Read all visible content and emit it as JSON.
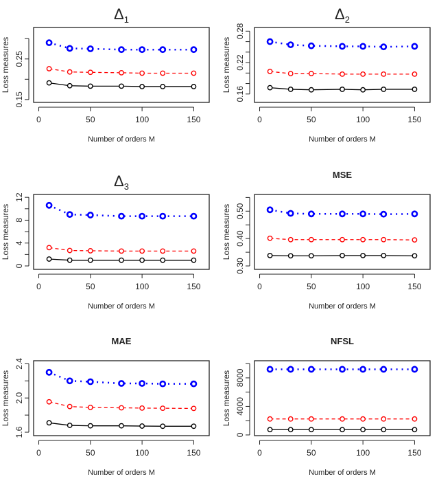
{
  "chart_data": [
    {
      "type": "line",
      "title": "Δ1",
      "title_main": "Δ",
      "title_sub": "1",
      "xlabel": "Number of orders M",
      "ylabel": "Loss measures",
      "xlim": [
        -5,
        165
      ],
      "ylim": [
        0.143,
        0.3275
      ],
      "xticks": [
        0,
        50,
        100,
        150
      ],
      "yticks": [
        0.15,
        0.2,
        0.25,
        0.3
      ],
      "ytick_labels": [
        "0.15",
        "",
        "0.25",
        ""
      ],
      "x": [
        10,
        30,
        50,
        80,
        100,
        120,
        150
      ],
      "series": [
        {
          "name": "blue-dotted",
          "color": "#0000ff",
          "values": [
            0.29,
            0.276,
            0.275,
            0.273,
            0.273,
            0.273,
            0.273
          ]
        },
        {
          "name": "red-dashed",
          "color": "#ff0000",
          "values": [
            0.226,
            0.218,
            0.217,
            0.216,
            0.215,
            0.215,
            0.215
          ]
        },
        {
          "name": "black-solid",
          "color": "#000000",
          "values": [
            0.191,
            0.184,
            0.183,
            0.183,
            0.182,
            0.182,
            0.182
          ]
        }
      ]
    },
    {
      "type": "line",
      "title": "Δ2",
      "title_main": "Δ",
      "title_sub": "2",
      "xlabel": "Number of orders M",
      "ylabel": "Loss measures",
      "xlim": [
        -5,
        165
      ],
      "ylim": [
        0.144,
        0.287
      ],
      "xticks": [
        0,
        50,
        100,
        150
      ],
      "yticks": [
        0.16,
        0.18,
        0.2,
        0.22,
        0.24,
        0.26,
        0.28
      ],
      "ytick_labels": [
        "0.16",
        "",
        "",
        "0.22",
        "",
        "",
        "0.28"
      ],
      "x": [
        10,
        30,
        50,
        80,
        100,
        120,
        150
      ],
      "series": [
        {
          "name": "blue-dotted",
          "color": "#0000ff",
          "values": [
            0.26,
            0.254,
            0.252,
            0.251,
            0.251,
            0.25,
            0.251
          ]
        },
        {
          "name": "red-dashed",
          "color": "#ff0000",
          "values": [
            0.203,
            0.199,
            0.199,
            0.198,
            0.198,
            0.198,
            0.198
          ]
        },
        {
          "name": "black-solid",
          "color": "#000000",
          "values": [
            0.172,
            0.169,
            0.168,
            0.169,
            0.168,
            0.169,
            0.169
          ]
        }
      ]
    },
    {
      "type": "line",
      "title": "Δ3",
      "title_main": "Δ",
      "title_sub": "3",
      "xlabel": "Number of orders M",
      "ylabel": "Loss measures",
      "xlim": [
        -5,
        165
      ],
      "ylim": [
        -0.6,
        12.5
      ],
      "xticks": [
        0,
        50,
        100,
        150
      ],
      "yticks": [
        0,
        2,
        4,
        6,
        8,
        10,
        12
      ],
      "ytick_labels": [
        "0",
        "",
        "4",
        "",
        "8",
        "",
        "12"
      ],
      "x": [
        10,
        30,
        50,
        80,
        100,
        120,
        150
      ],
      "series": [
        {
          "name": "blue-dotted",
          "color": "#0000ff",
          "values": [
            10.6,
            9.0,
            8.9,
            8.7,
            8.7,
            8.7,
            8.7
          ]
        },
        {
          "name": "red-dashed",
          "color": "#ff0000",
          "values": [
            3.2,
            2.7,
            2.65,
            2.6,
            2.6,
            2.6,
            2.6
          ]
        },
        {
          "name": "black-solid",
          "color": "#000000",
          "values": [
            1.2,
            1.0,
            1.0,
            1.0,
            1.0,
            1.0,
            1.0
          ]
        }
      ]
    },
    {
      "type": "line",
      "title": "MSE",
      "xlabel": "Number of orders M",
      "ylabel": "Loss measures",
      "xlim": [
        -5,
        165
      ],
      "ylim": [
        0.2875,
        0.561
      ],
      "xticks": [
        0,
        50,
        100,
        150
      ],
      "yticks": [
        0.3,
        0.35,
        0.4,
        0.45,
        0.5,
        0.55
      ],
      "ytick_labels": [
        "0.30",
        "",
        "0.40",
        "",
        "0.50",
        ""
      ],
      "x": [
        10,
        30,
        50,
        80,
        100,
        120,
        150
      ],
      "series": [
        {
          "name": "blue-dotted",
          "color": "#0000ff",
          "values": [
            0.505,
            0.492,
            0.49,
            0.49,
            0.49,
            0.489,
            0.49
          ]
        },
        {
          "name": "red-dashed",
          "color": "#ff0000",
          "values": [
            0.401,
            0.396,
            0.396,
            0.396,
            0.396,
            0.396,
            0.395
          ]
        },
        {
          "name": "black-solid",
          "color": "#000000",
          "values": [
            0.338,
            0.337,
            0.337,
            0.338,
            0.338,
            0.338,
            0.337
          ]
        }
      ]
    },
    {
      "type": "line",
      "title": "MAE",
      "xlabel": "Number of orders M",
      "ylabel": "Loss measures",
      "xlim": [
        -5,
        165
      ],
      "ylim": [
        1.56,
        2.435
      ],
      "xticks": [
        0,
        50,
        100,
        150
      ],
      "yticks": [
        1.6,
        1.8,
        2.0,
        2.2,
        2.4
      ],
      "ytick_labels": [
        "1.6",
        "",
        "2.0",
        "",
        "2.4"
      ],
      "x": [
        10,
        30,
        50,
        80,
        100,
        120,
        150
      ],
      "series": [
        {
          "name": "blue-dotted",
          "color": "#0000ff",
          "values": [
            2.3,
            2.2,
            2.19,
            2.17,
            2.17,
            2.165,
            2.165
          ]
        },
        {
          "name": "red-dashed",
          "color": "#ff0000",
          "values": [
            1.955,
            1.9,
            1.89,
            1.885,
            1.882,
            1.88,
            1.878
          ]
        },
        {
          "name": "black-solid",
          "color": "#000000",
          "values": [
            1.71,
            1.68,
            1.675,
            1.675,
            1.672,
            1.67,
            1.67
          ]
        }
      ]
    },
    {
      "type": "line",
      "title": "NFSL",
      "xlabel": "Number of orders M",
      "ylabel": "Loss measures",
      "xlim": [
        -5,
        165
      ],
      "ylim": [
        -100,
        10400
      ],
      "xticks": [
        0,
        50,
        100,
        150
      ],
      "yticks": [
        0,
        2000,
        4000,
        6000,
        8000,
        10000
      ],
      "ytick_labels": [
        "0",
        "",
        "4000",
        "",
        "8000",
        ""
      ],
      "x": [
        10,
        30,
        50,
        80,
        100,
        120,
        150
      ],
      "series": [
        {
          "name": "blue-dotted",
          "color": "#0000ff",
          "values": [
            9200,
            9200,
            9200,
            9200,
            9200,
            9200,
            9200
          ]
        },
        {
          "name": "red-dashed",
          "color": "#ff0000",
          "values": [
            2240,
            2240,
            2240,
            2240,
            2240,
            2240,
            2240
          ]
        },
        {
          "name": "black-solid",
          "color": "#000000",
          "values": [
            740,
            740,
            740,
            740,
            740,
            740,
            740
          ]
        }
      ]
    }
  ]
}
